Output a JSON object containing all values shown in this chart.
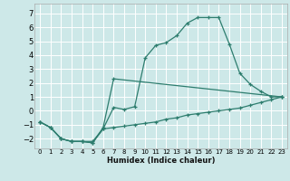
{
  "xlabel": "Humidex (Indice chaleur)",
  "bg_color": "#cde8e8",
  "grid_color": "#ffffff",
  "line_color": "#2d7d6e",
  "xlim": [
    -0.5,
    23.5
  ],
  "ylim": [
    -2.7,
    7.7
  ],
  "xticks": [
    0,
    1,
    2,
    3,
    4,
    5,
    6,
    7,
    8,
    9,
    10,
    11,
    12,
    13,
    14,
    15,
    16,
    17,
    18,
    19,
    20,
    21,
    22,
    23
  ],
  "yticks": [
    -2,
    -1,
    0,
    1,
    2,
    3,
    4,
    5,
    6,
    7
  ],
  "series": [
    {
      "x": [
        0,
        1,
        2,
        3,
        4,
        5,
        6,
        7,
        8,
        9,
        10,
        11,
        12,
        13,
        14,
        15,
        16,
        17,
        18,
        19,
        20,
        21,
        22,
        23
      ],
      "y": [
        -0.8,
        -1.2,
        -2.0,
        -2.2,
        -2.2,
        -2.2,
        -1.3,
        -1.2,
        -1.1,
        -1.0,
        -0.9,
        -0.8,
        -0.6,
        -0.5,
        -0.3,
        -0.2,
        -0.1,
        0.0,
        0.1,
        0.2,
        0.4,
        0.6,
        0.8,
        1.0
      ]
    },
    {
      "x": [
        0,
        1,
        2,
        3,
        4,
        5,
        6,
        7,
        8,
        9,
        10,
        11,
        12,
        13,
        14,
        15,
        16,
        17,
        18,
        19,
        20,
        21,
        22,
        23
      ],
      "y": [
        -0.8,
        -1.2,
        -2.0,
        -2.2,
        -2.2,
        -2.3,
        -1.3,
        0.25,
        0.1,
        0.3,
        3.8,
        4.7,
        4.9,
        5.4,
        6.3,
        6.7,
        6.7,
        6.7,
        4.8,
        2.7,
        1.9,
        1.4,
        1.0,
        1.0
      ]
    },
    {
      "x": [
        0,
        1,
        2,
        3,
        4,
        5,
        6,
        7,
        23
      ],
      "y": [
        -0.8,
        -1.2,
        -2.0,
        -2.2,
        -2.2,
        -2.3,
        -1.2,
        2.3,
        1.0
      ]
    }
  ]
}
